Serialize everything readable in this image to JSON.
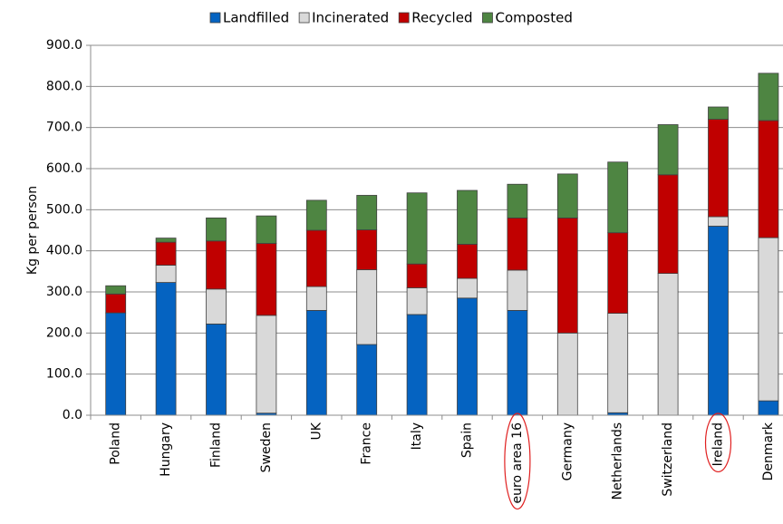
{
  "chart_data": {
    "type": "bar",
    "stacked": true,
    "categories": [
      "Poland",
      "Hungary",
      "Finland",
      "Sweden",
      "UK",
      "France",
      "Italy",
      "Spain",
      "euro area 16",
      "Germany",
      "Netherlands",
      "Switzerland",
      "Ireland",
      "Denmark"
    ],
    "highlighted_categories": [
      "euro area 16",
      "Ireland"
    ],
    "series": [
      {
        "name": "Landfilled",
        "color": "#0563C1",
        "values": [
          249,
          323,
          222,
          5,
          255,
          172,
          245,
          285,
          255,
          0,
          6,
          0,
          460,
          35
        ]
      },
      {
        "name": "Incinerated",
        "color": "#D9D9D9",
        "values": [
          0,
          42,
          85,
          238,
          58,
          182,
          65,
          48,
          98,
          200,
          242,
          345,
          23,
          397
        ]
      },
      {
        "name": "Recycled",
        "color": "#C00000",
        "values": [
          46,
          56,
          117,
          175,
          137,
          97,
          58,
          83,
          127,
          280,
          196,
          240,
          237,
          285
        ]
      },
      {
        "name": "Composted",
        "color": "#4E8542",
        "values": [
          20,
          10,
          56,
          67,
          73,
          84,
          173,
          131,
          82,
          107,
          172,
          122,
          30,
          115
        ]
      }
    ],
    "ylabel": "Kg per person",
    "xlabel": "",
    "ylim": [
      0,
      900
    ],
    "yticks": [
      "0.0",
      "100.0",
      "200.0",
      "300.0",
      "400.0",
      "500.0",
      "600.0",
      "700.0",
      "800.0",
      "900.0"
    ],
    "grid": true,
    "legend_position": "top"
  }
}
